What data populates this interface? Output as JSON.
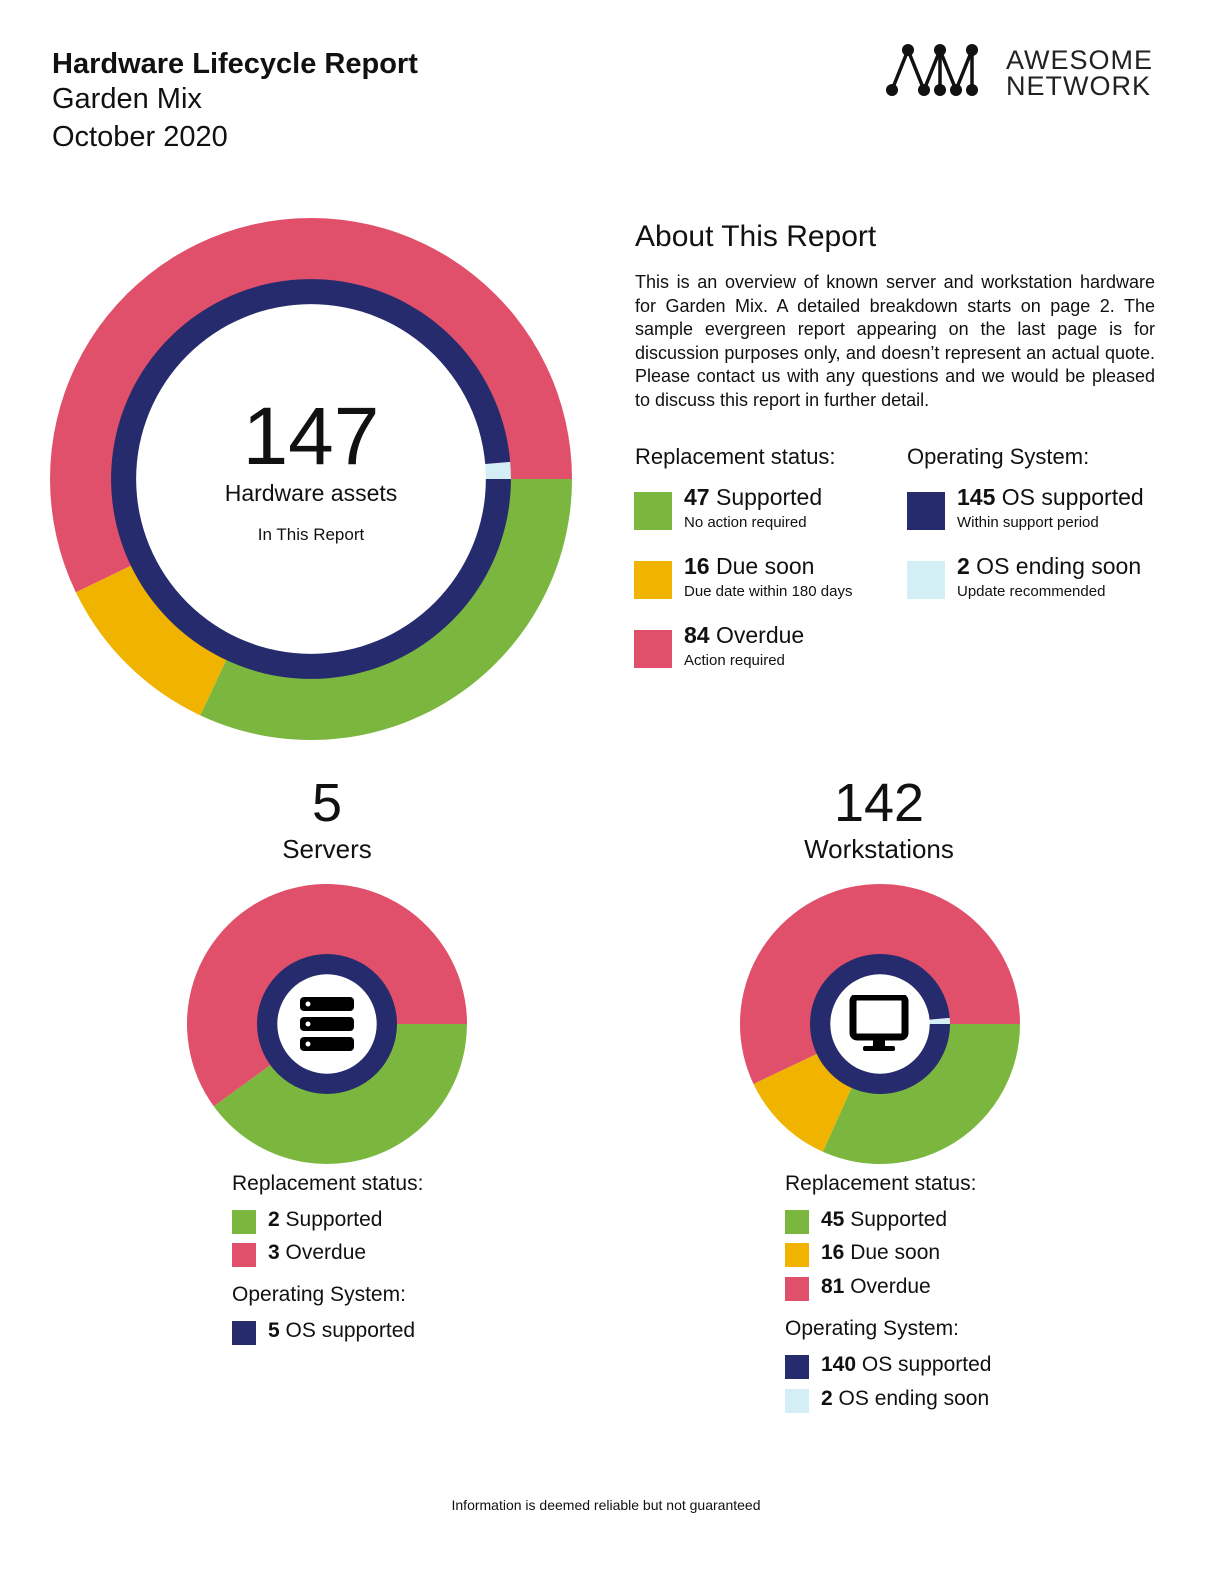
{
  "header": {
    "title": "Hardware Lifecycle Report",
    "client": "Garden Mix",
    "date": "October 2020"
  },
  "logo": {
    "line1": "AWESOME",
    "line2": "NETWORK",
    "icon": "network-nodes-icon"
  },
  "colors": {
    "supported": "#7bb73f",
    "due_soon": "#f0b400",
    "overdue": "#e0506a",
    "os_supported": "#262b6e",
    "os_ending": "#d3eef5"
  },
  "total": {
    "count": "147",
    "label": "Hardware assets",
    "sublabel": "In This Report"
  },
  "about": {
    "heading": "About This Report",
    "body": "This is an overview of known server and workstation hardware for Garden Mix. A detailed breakdown starts on page 2. The sample evergreen report appearing on the last page is for discussion purposes only, and doesn’t represent an actual quote. Please contact us with any questions and we would be pleased to discuss this report in further detail."
  },
  "replacement": {
    "heading": "Replacement status:",
    "items": [
      {
        "count": "47",
        "label": " Supported",
        "sub": "No action required"
      },
      {
        "count": "16",
        "label": " Due soon",
        "sub": "Due date within 180 days"
      },
      {
        "count": "84",
        "label": " Overdue",
        "sub": "Action required"
      }
    ]
  },
  "os": {
    "heading": "Operating System:",
    "items": [
      {
        "count": "145",
        "label": " OS supported",
        "sub": "Within support period"
      },
      {
        "count": "2",
        "label": " OS ending soon",
        "sub": "Update recommended"
      }
    ]
  },
  "servers": {
    "count": "5",
    "label": "Servers",
    "icon": "server-stack-icon",
    "replacement_heading": "Replacement status:",
    "replacement_items": [
      {
        "count": "2",
        "label": " Supported"
      },
      {
        "count": "3",
        "label": " Overdue"
      }
    ],
    "os_heading": "Operating System:",
    "os_items": [
      {
        "count": "5",
        "label": " OS supported"
      }
    ]
  },
  "workstations": {
    "count": "142",
    "label": "Workstations",
    "icon": "monitor-icon",
    "replacement_heading": "Replacement status:",
    "replacement_items": [
      {
        "count": "45",
        "label": " Supported"
      },
      {
        "count": "16",
        "label": " Due soon"
      },
      {
        "count": "81",
        "label": " Overdue"
      }
    ],
    "os_heading": "Operating System:",
    "os_items": [
      {
        "count": "140",
        "label": " OS supported"
      },
      {
        "count": "2",
        "label": " OS ending soon"
      }
    ]
  },
  "chart_data": [
    {
      "type": "pie",
      "name": "total",
      "rings": [
        {
          "ring": "outer",
          "labels": [
            "Supported",
            "Due soon",
            "Overdue"
          ],
          "values": [
            47,
            16,
            84
          ],
          "colors": [
            "#7bb73f",
            "#f0b400",
            "#e0506a"
          ]
        },
        {
          "ring": "inner",
          "labels": [
            "OS supported",
            "OS ending soon"
          ],
          "values": [
            145,
            2
          ],
          "colors": [
            "#262b6e",
            "#d3eef5"
          ]
        }
      ]
    },
    {
      "type": "pie",
      "name": "servers",
      "rings": [
        {
          "ring": "outer",
          "labels": [
            "Supported",
            "Overdue"
          ],
          "values": [
            2,
            3
          ],
          "colors": [
            "#7bb73f",
            "#e0506a"
          ]
        },
        {
          "ring": "inner",
          "labels": [
            "OS supported"
          ],
          "values": [
            5
          ],
          "colors": [
            "#262b6e"
          ]
        }
      ]
    },
    {
      "type": "pie",
      "name": "workstations",
      "rings": [
        {
          "ring": "outer",
          "labels": [
            "Supported",
            "Due soon",
            "Overdue"
          ],
          "values": [
            45,
            16,
            81
          ],
          "colors": [
            "#7bb73f",
            "#f0b400",
            "#e0506a"
          ]
        },
        {
          "ring": "inner",
          "labels": [
            "OS supported",
            "OS ending soon"
          ],
          "values": [
            140,
            2
          ],
          "colors": [
            "#262b6e",
            "#d3eef5"
          ]
        }
      ]
    }
  ],
  "footer": "Information is deemed reliable but not guaranteed"
}
